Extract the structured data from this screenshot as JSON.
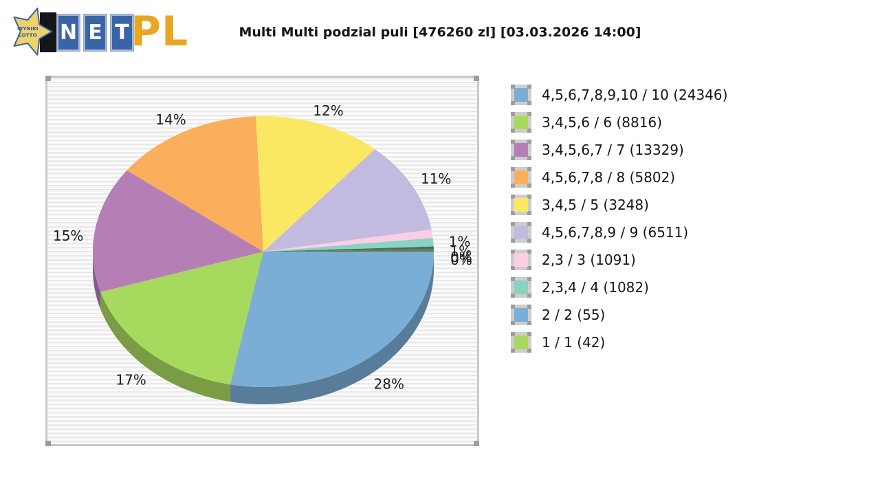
{
  "logo": {
    "star_line1": "WYNIKI",
    "star_line2": "LOTTO",
    "net": [
      "N",
      "E",
      "T"
    ],
    "suffix": "PL"
  },
  "title": "Multi Multi podzial puli [476260 zl] [03.03.2026 14:00]",
  "chart_data": {
    "type": "pie",
    "style": "3d-pie",
    "title": "Multi Multi podzial puli [476260 zl] [03.03.2026 14:00]",
    "pool_label": "476260 zl",
    "draw_datetime": "03.03.2026 14:00",
    "legend_position": "right",
    "grid": false,
    "slices": [
      {
        "label": "4,5,6,7,8,9,10 / 10",
        "count": 24346,
        "percent": 28,
        "color": "#7aaed6"
      },
      {
        "label": "3,4,5,6 / 6",
        "count": 8816,
        "percent": 17,
        "color": "#a8d95f"
      },
      {
        "label": "3,4,5,6,7 / 7",
        "count": 13329,
        "percent": 15,
        "color": "#b57fb6"
      },
      {
        "label": "4,5,6,7,8 / 8",
        "count": 5802,
        "percent": 14,
        "color": "#fbae5b"
      },
      {
        "label": "3,4,5 / 5",
        "count": 3248,
        "percent": 12,
        "color": "#fbe862"
      },
      {
        "label": "4,5,6,7,8,9 / 9",
        "count": 6511,
        "percent": 11,
        "color": "#c2badf"
      },
      {
        "label": "2,3 / 3",
        "count": 1091,
        "percent": 1,
        "color": "#fccee4"
      },
      {
        "label": "2,3,4 / 4",
        "count": 1082,
        "percent": 1,
        "color": "#8ad3c0"
      },
      {
        "label": "2 / 2",
        "count": 55,
        "percent": 0,
        "color": "#7aaed6"
      },
      {
        "label": "1 / 1",
        "count": 42,
        "percent": 0,
        "color": "#a8d95f"
      }
    ]
  }
}
